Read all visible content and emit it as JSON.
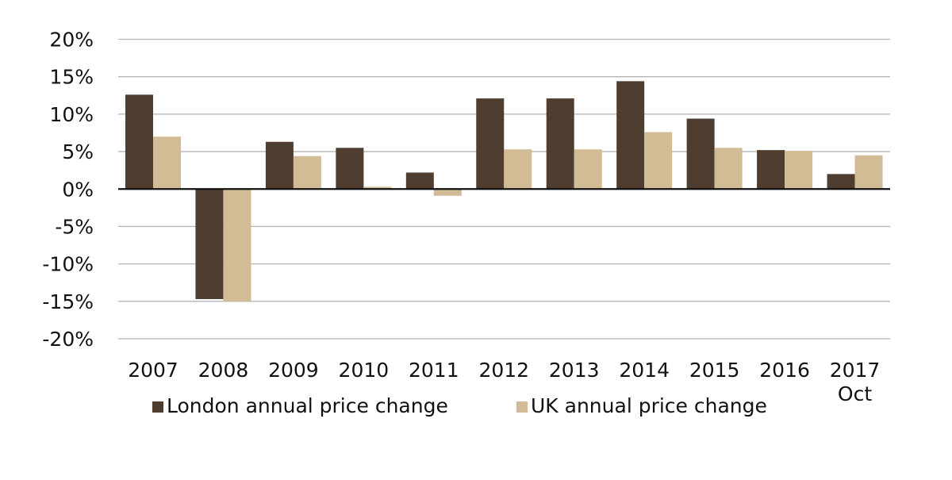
{
  "chart_data": {
    "type": "bar",
    "title": "",
    "xlabel": "",
    "ylabel": "",
    "categories": [
      "2007",
      "2008",
      "2009",
      "2010",
      "2011",
      "2012",
      "2013",
      "2014",
      "2015",
      "2016",
      "2017\nOct"
    ],
    "category_lines": [
      [
        "2007"
      ],
      [
        "2008"
      ],
      [
        "2009"
      ],
      [
        "2010"
      ],
      [
        "2011"
      ],
      [
        "2012"
      ],
      [
        "2013"
      ],
      [
        "2014"
      ],
      [
        "2015"
      ],
      [
        "2016"
      ],
      [
        "2017",
        "Oct"
      ]
    ],
    "series": [
      {
        "name": "London annual price change",
        "color": "#4f3d30",
        "values": [
          12.6,
          -14.7,
          6.3,
          5.5,
          2.2,
          12.1,
          12.1,
          14.4,
          9.4,
          5.2,
          2.0
        ]
      },
      {
        "name": "UK annual price change",
        "color": "#d1bc96",
        "values": [
          7.0,
          -15.0,
          4.4,
          0.3,
          -0.9,
          5.3,
          5.3,
          7.6,
          5.5,
          5.1,
          4.5
        ]
      }
    ],
    "ylim": [
      -20,
      20
    ],
    "yticks": [
      20,
      15,
      10,
      5,
      0,
      -5,
      -10,
      -15,
      -20
    ],
    "ytick_labels": [
      "20%",
      "15%",
      "10%",
      "5%",
      "0%",
      "-5%",
      "-10%",
      "-15%",
      "-20%"
    ],
    "y_unit": "%",
    "grid": true,
    "legend": "bottom"
  }
}
